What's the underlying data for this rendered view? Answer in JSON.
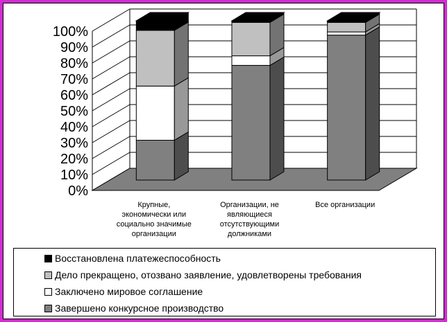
{
  "chart_data": {
    "type": "bar",
    "stacked": true,
    "three_d": true,
    "categories": [
      [
        "Крупные,",
        "экономически или",
        "социально значимые",
        "организации"
      ],
      [
        "Организации, не",
        "являющиеся",
        "отсутствующими",
        "должниками"
      ],
      [
        "Все организации"
      ]
    ],
    "series": [
      {
        "name": "Завершено конкурсное производство",
        "color": "#808080",
        "values": [
          25,
          72,
          91
        ]
      },
      {
        "name": "Заключено мировое соглашение",
        "color": "#ffffff",
        "values": [
          34,
          6,
          2
        ]
      },
      {
        "name": "Дело прекращено, отозвано заявление, удовлетворены требования",
        "color": "#c0c0c0",
        "values": [
          35,
          21,
          6
        ]
      },
      {
        "name": "Восстановлена платежеспособность",
        "color": "#000000",
        "values": [
          6,
          1,
          1
        ]
      }
    ],
    "y_ticks": [
      "0%",
      "10%",
      "20%",
      "30%",
      "40%",
      "50%",
      "60%",
      "70%",
      "80%",
      "90%",
      "100%"
    ],
    "ylim": [
      0,
      100
    ],
    "grid": true,
    "legend_position": "bottom",
    "legend_order": [
      3,
      2,
      1,
      0
    ]
  }
}
